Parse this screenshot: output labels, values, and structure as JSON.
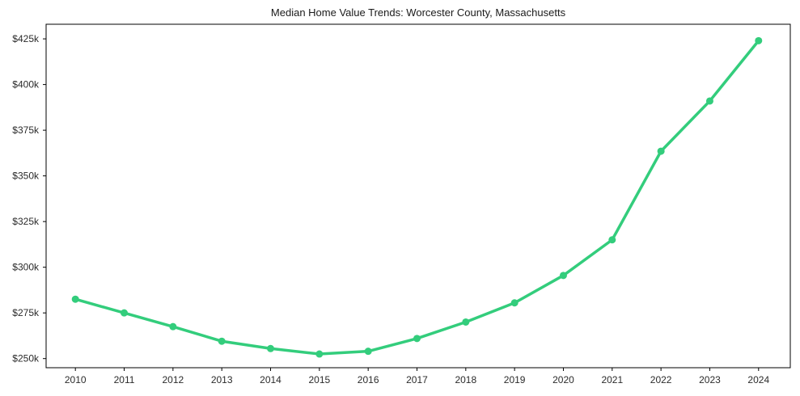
{
  "chart_data": {
    "type": "line",
    "title": "Median Home Value Trends: Worcester County, Massachusetts",
    "x": [
      2010,
      2011,
      2012,
      2013,
      2014,
      2015,
      2016,
      2017,
      2018,
      2019,
      2020,
      2021,
      2022,
      2023,
      2024
    ],
    "xtick_labels": [
      "2010",
      "2011",
      "2012",
      "2013",
      "2014",
      "2015",
      "2016",
      "2017",
      "2018",
      "2019",
      "2020",
      "2021",
      "2022",
      "2023",
      "2024"
    ],
    "series": [
      {
        "name": "median-home-value",
        "values": [
          282.5,
          275,
          267.5,
          259.5,
          255.5,
          252.5,
          254,
          261,
          270,
          280.5,
          295.5,
          315,
          363.5,
          391,
          424
        ],
        "unit": "$k",
        "color": "#33cd7c",
        "marker": "circle"
      }
    ],
    "yticks": [
      {
        "value": 250,
        "label": "$250k"
      },
      {
        "value": 275,
        "label": "$275k"
      },
      {
        "value": 300,
        "label": "$300k"
      },
      {
        "value": 325,
        "label": "$325k"
      },
      {
        "value": 350,
        "label": "$350k"
      },
      {
        "value": 375,
        "label": "$375k"
      },
      {
        "value": 400,
        "label": "$400k"
      },
      {
        "value": 425,
        "label": "$425k"
      }
    ],
    "xlim": [
      2009.4,
      2024.65
    ],
    "ylim": [
      245,
      433
    ],
    "xlabel": "",
    "ylabel": "",
    "grid": false,
    "legend": "none"
  },
  "colors": {
    "background": "#ffffff",
    "spine": "#000000",
    "tick_label": "#2b2b2b",
    "line": "#33cd7c"
  }
}
